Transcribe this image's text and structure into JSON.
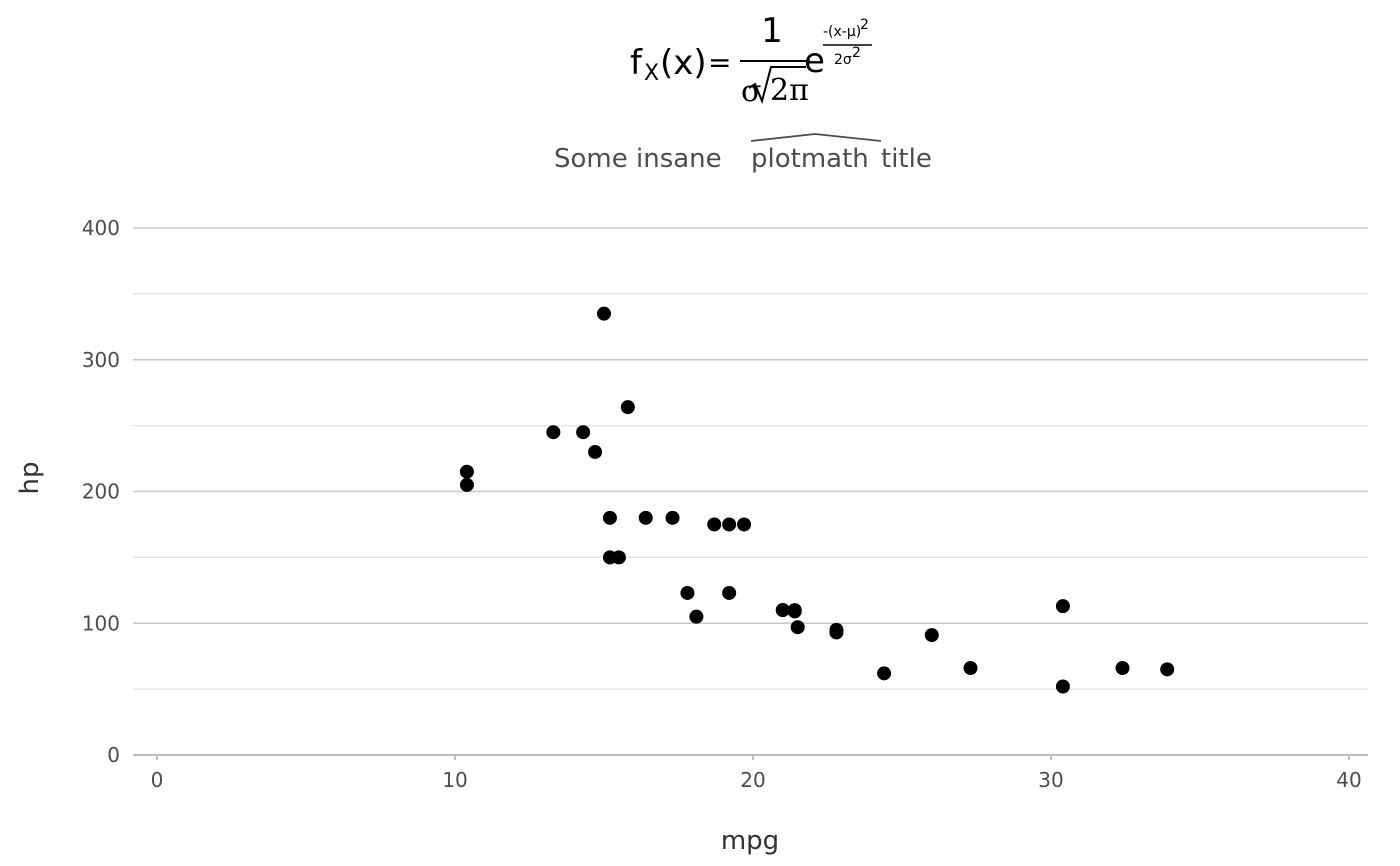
{
  "chart_data": {
    "type": "scatter",
    "title": {
      "formula_lhs": "f",
      "formula_sub": "X",
      "formula_arg": "(x)",
      "formula_eq": "=",
      "formula_num": "1",
      "formula_sigma": "σ",
      "formula_sqrt_arg": "2π",
      "formula_e": "e",
      "formula_exp_num": "-(x-μ)",
      "formula_exp_num_pow": "2",
      "formula_exp_den": "2σ",
      "formula_exp_den_pow": "2"
    },
    "subtitle_pre": "Some insane ",
    "subtitle_hat": "plotmath",
    "subtitle_post": " title",
    "xlabel": "mpg",
    "ylabel": "hp",
    "xlim": [
      0,
      40
    ],
    "ylim": [
      0,
      400
    ],
    "xticks": [
      0,
      10,
      20,
      30,
      40
    ],
    "yticks": [
      0,
      100,
      200,
      300,
      400
    ],
    "xtick_labels": [
      "0",
      "10",
      "20",
      "30",
      "40"
    ],
    "ytick_labels": [
      "0",
      "100",
      "200",
      "300",
      "400"
    ],
    "grid": true,
    "points": [
      {
        "x": 21.0,
        "y": 110
      },
      {
        "x": 21.0,
        "y": 110
      },
      {
        "x": 22.8,
        "y": 93
      },
      {
        "x": 21.4,
        "y": 110
      },
      {
        "x": 18.7,
        "y": 175
      },
      {
        "x": 18.1,
        "y": 105
      },
      {
        "x": 14.3,
        "y": 245
      },
      {
        "x": 24.4,
        "y": 62
      },
      {
        "x": 22.8,
        "y": 95
      },
      {
        "x": 19.2,
        "y": 123
      },
      {
        "x": 17.8,
        "y": 123
      },
      {
        "x": 16.4,
        "y": 180
      },
      {
        "x": 17.3,
        "y": 180
      },
      {
        "x": 15.2,
        "y": 180
      },
      {
        "x": 10.4,
        "y": 205
      },
      {
        "x": 10.4,
        "y": 215
      },
      {
        "x": 14.7,
        "y": 230
      },
      {
        "x": 32.4,
        "y": 66
      },
      {
        "x": 30.4,
        "y": 52
      },
      {
        "x": 33.9,
        "y": 65
      },
      {
        "x": 21.5,
        "y": 97
      },
      {
        "x": 15.5,
        "y": 150
      },
      {
        "x": 15.2,
        "y": 150
      },
      {
        "x": 13.3,
        "y": 245
      },
      {
        "x": 19.2,
        "y": 175
      },
      {
        "x": 27.3,
        "y": 66
      },
      {
        "x": 26.0,
        "y": 91
      },
      {
        "x": 30.4,
        "y": 113
      },
      {
        "x": 15.8,
        "y": 264
      },
      {
        "x": 19.7,
        "y": 175
      },
      {
        "x": 15.0,
        "y": 335
      },
      {
        "x": 21.4,
        "y": 109
      }
    ],
    "colors": {
      "point": "#000000",
      "grid_major": "#c8c8c8",
      "grid_minor": "#e0e0e0",
      "axis_line": "#bebebe"
    }
  }
}
